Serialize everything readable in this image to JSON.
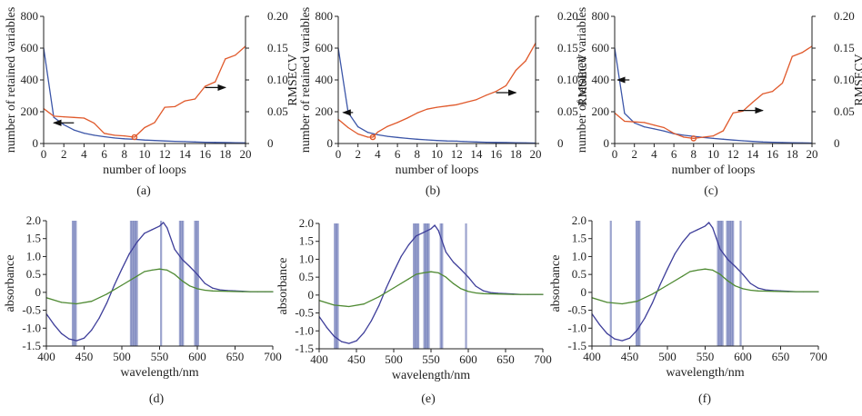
{
  "colors": {
    "retained_line": "#3c56a8",
    "rmsecv_line": "#e0592b",
    "spectrum_line": "#3e3e9a",
    "mean_line": "#4f8a33",
    "selected_band": "#4a5aa6",
    "axis": "#222222"
  },
  "chart_data": [
    {
      "id": "a",
      "caption": "(a)",
      "type": "line",
      "xlabel": "number of loops",
      "ylabel": "number of retained variables",
      "y2label": "RMSECV",
      "xlim": [
        0,
        20
      ],
      "ylim": [
        0,
        800
      ],
      "y2lim": [
        0,
        0.2
      ],
      "xticks": [
        0,
        2,
        4,
        6,
        8,
        10,
        12,
        14,
        16,
        18,
        20
      ],
      "yticks": [
        0,
        200,
        400,
        600,
        800
      ],
      "y2ticks": [
        0,
        0.05,
        0.1,
        0.15,
        0.2
      ],
      "y2ticklabels": [
        "0",
        "0.05",
        "0.10",
        "0.15",
        "0.20"
      ],
      "series": [
        {
          "name": "number of retained variables",
          "axis": "left",
          "x": [
            0,
            1,
            2,
            3,
            4,
            5,
            6,
            7,
            8,
            9,
            10,
            11,
            12,
            13,
            14,
            15,
            16,
            17,
            18,
            19,
            20
          ],
          "values": [
            601,
            165,
            118,
            85,
            65,
            52,
            43,
            35,
            30,
            26,
            22,
            19,
            16,
            14,
            12,
            10,
            8,
            7,
            6,
            5,
            4
          ]
        },
        {
          "name": "RMSECV",
          "axis": "right",
          "x": [
            0,
            1,
            2,
            3,
            4,
            5,
            6,
            7,
            8,
            9,
            10,
            11,
            12,
            13,
            14,
            15,
            16,
            17,
            18,
            19,
            20
          ],
          "values": [
            0.055,
            0.043,
            0.042,
            0.041,
            0.04,
            0.032,
            0.016,
            0.013,
            0.012,
            0.01,
            0.025,
            0.033,
            0.057,
            0.058,
            0.067,
            0.07,
            0.09,
            0.097,
            0.133,
            0.139,
            0.153
          ]
        }
      ],
      "markers": [
        {
          "series": "RMSECV",
          "x": 9,
          "value": 0.01
        }
      ],
      "arrows": [
        {
          "direction": "left",
          "x": [
            1.0,
            3.0
          ],
          "y": 130,
          "axis": "left"
        },
        {
          "direction": "right",
          "x": [
            16.0,
            18.0
          ],
          "y": 0.088,
          "axis": "right"
        }
      ]
    },
    {
      "id": "b",
      "caption": "(b)",
      "type": "line",
      "xlabel": "number of loops",
      "ylabel": "number of retained variables",
      "y2label": "RMSECV",
      "xlim": [
        0,
        20
      ],
      "ylim": [
        0,
        800
      ],
      "y2lim": [
        0,
        0.2
      ],
      "xticks": [
        0,
        2,
        4,
        6,
        8,
        10,
        12,
        14,
        16,
        18,
        20
      ],
      "yticks": [
        0,
        200,
        400,
        600,
        800
      ],
      "y2ticks": [
        0,
        0.05,
        0.1,
        0.15,
        0.2
      ],
      "y2ticklabels": [
        "0",
        "0.05",
        "0.10",
        "0.15",
        "0.20"
      ],
      "series": [
        {
          "name": "number of retained variables",
          "axis": "left",
          "x": [
            0,
            1,
            2,
            3,
            4,
            5,
            6,
            7,
            8,
            9,
            10,
            11,
            12,
            13,
            14,
            15,
            16,
            17,
            18,
            19,
            20
          ],
          "values": [
            601,
            195,
            105,
            70,
            55,
            45,
            38,
            32,
            27,
            23,
            19,
            16,
            15,
            12,
            10,
            8,
            7,
            6,
            5,
            4,
            3
          ]
        },
        {
          "name": "RMSECV",
          "axis": "right",
          "x": [
            0,
            1,
            2,
            3,
            3.5,
            4,
            5,
            6,
            7,
            8,
            9,
            10,
            11,
            12,
            13,
            14,
            15,
            16,
            17,
            18,
            19,
            20
          ],
          "values": [
            0.038,
            0.025,
            0.015,
            0.01,
            0.01,
            0.018,
            0.027,
            0.033,
            0.04,
            0.048,
            0.054,
            0.057,
            0.059,
            0.061,
            0.065,
            0.069,
            0.076,
            0.082,
            0.091,
            0.115,
            0.13,
            0.158
          ]
        }
      ],
      "markers": [
        {
          "series": "RMSECV",
          "x": 3.5,
          "value": 0.01
        }
      ],
      "arrows": [
        {
          "direction": "left",
          "x": [
            0.5,
            1.5
          ],
          "y": 195,
          "axis": "left"
        },
        {
          "direction": "right",
          "x": [
            16.0,
            18.0
          ],
          "y": 0.08,
          "axis": "right"
        }
      ]
    },
    {
      "id": "c",
      "caption": "(c)",
      "type": "line",
      "xlabel": "number of loops",
      "ylabel": "number of retained variables",
      "y2label": "RMSECV",
      "xlim": [
        0,
        20
      ],
      "ylim": [
        0,
        800
      ],
      "y2lim": [
        0,
        0.2
      ],
      "xticks": [
        0,
        2,
        4,
        6,
        8,
        10,
        12,
        14,
        16,
        18,
        20
      ],
      "yticks": [
        0,
        200,
        400,
        600,
        800
      ],
      "y2ticks": [
        0,
        0.05,
        0.1,
        0.15,
        0.2
      ],
      "y2ticklabels": [
        "0",
        "0.05",
        "0.10",
        "0.15",
        "0.20"
      ],
      "series": [
        {
          "name": "number of retained variables",
          "axis": "left",
          "x": [
            0,
            1,
            2,
            3,
            4,
            5,
            6,
            7,
            8,
            9,
            10,
            11,
            12,
            13,
            14,
            15,
            16,
            17,
            18,
            19,
            20
          ],
          "values": [
            601,
            190,
            130,
            105,
            92,
            78,
            62,
            52,
            45,
            38,
            32,
            27,
            22,
            17,
            13,
            10,
            8,
            6,
            5,
            4,
            3
          ]
        },
        {
          "name": "RMSECV",
          "axis": "right",
          "x": [
            0,
            1,
            2,
            3,
            4,
            5,
            6,
            7,
            8,
            9,
            10,
            11,
            12,
            13,
            14,
            15,
            16,
            17,
            18,
            19,
            20
          ],
          "values": [
            0.048,
            0.035,
            0.034,
            0.033,
            0.029,
            0.025,
            0.016,
            0.01,
            0.008,
            0.01,
            0.012,
            0.02,
            0.048,
            0.051,
            0.065,
            0.078,
            0.082,
            0.095,
            0.137,
            0.143,
            0.153
          ]
        }
      ],
      "markers": [
        {
          "series": "RMSECV",
          "x": 8,
          "value": 0.008
        }
      ],
      "arrows": [
        {
          "direction": "left",
          "x": [
            0.3,
            1.5
          ],
          "y": 400,
          "axis": "left"
        },
        {
          "direction": "right",
          "x": [
            12.5,
            15.0
          ],
          "y": 0.052,
          "axis": "right"
        }
      ]
    },
    {
      "id": "d",
      "caption": "(d)",
      "type": "line",
      "xlabel": "wavelength/nm",
      "ylabel": "absorbance",
      "xlim": [
        400,
        700
      ],
      "ylim": [
        -1.5,
        2.0
      ],
      "xticks": [
        400,
        450,
        500,
        550,
        600,
        650,
        700
      ],
      "yticks": [
        -1.5,
        -1.0,
        -0.5,
        0,
        0.5,
        1.0,
        1.5,
        2.0
      ],
      "yticklabels": [
        "-1.5",
        "-1.0",
        "-0.5",
        "0",
        "0.5",
        "1.0",
        "1.5",
        "2.0"
      ],
      "series": [
        {
          "name": "spectrum",
          "x": [
            400,
            410,
            420,
            430,
            440,
            450,
            460,
            470,
            480,
            490,
            500,
            510,
            520,
            530,
            540,
            550,
            555,
            560,
            570,
            580,
            590,
            600,
            610,
            620,
            630,
            640,
            650,
            660,
            670,
            680,
            690,
            700
          ],
          "values": [
            -0.6,
            -0.9,
            -1.15,
            -1.3,
            -1.35,
            -1.28,
            -1.05,
            -0.72,
            -0.3,
            0.2,
            0.65,
            1.08,
            1.4,
            1.65,
            1.75,
            1.85,
            1.95,
            1.8,
            1.2,
            0.92,
            0.72,
            0.5,
            0.25,
            0.12,
            0.07,
            0.05,
            0.04,
            0.03,
            0.02,
            0.02,
            0.02,
            0.02
          ]
        },
        {
          "name": "mean",
          "x": [
            400,
            420,
            440,
            460,
            480,
            500,
            520,
            530,
            540,
            550,
            560,
            570,
            580,
            590,
            600,
            610,
            620,
            640,
            660,
            680,
            700
          ],
          "values": [
            -0.15,
            -0.28,
            -0.32,
            -0.25,
            -0.05,
            0.2,
            0.45,
            0.58,
            0.62,
            0.65,
            0.62,
            0.5,
            0.32,
            0.18,
            0.1,
            0.06,
            0.04,
            0.03,
            0.02,
            0.02,
            0.02
          ]
        }
      ],
      "selected_wavelengths": [
        435,
        437,
        439,
        512,
        514,
        516,
        518,
        520,
        552,
        577,
        579,
        581,
        597,
        599,
        601
      ]
    },
    {
      "id": "e",
      "caption": "(e)",
      "type": "line",
      "xlabel": "wavelength/nm",
      "ylabel": "absorbance",
      "xlim": [
        400,
        700
      ],
      "ylim": [
        -1.5,
        2.0
      ],
      "xticks": [
        400,
        450,
        500,
        550,
        600,
        650,
        700
      ],
      "yticks": [
        -1.5,
        -1.0,
        -0.5,
        0,
        0.5,
        1.0,
        1.5,
        2.0
      ],
      "yticklabels": [
        "-1.5",
        "-1.0",
        "-0.5",
        "0",
        "0.5",
        "1.0",
        "1.5",
        "2.0"
      ],
      "series": [
        {
          "name": "spectrum",
          "x": [
            400,
            410,
            420,
            430,
            440,
            450,
            460,
            470,
            480,
            490,
            500,
            510,
            520,
            530,
            540,
            550,
            555,
            560,
            570,
            580,
            590,
            600,
            610,
            620,
            630,
            640,
            650,
            660,
            670,
            680,
            690,
            700
          ],
          "values": [
            -0.6,
            -0.9,
            -1.15,
            -1.3,
            -1.35,
            -1.28,
            -1.05,
            -0.72,
            -0.3,
            0.2,
            0.65,
            1.08,
            1.4,
            1.65,
            1.75,
            1.85,
            1.95,
            1.8,
            1.2,
            0.92,
            0.72,
            0.5,
            0.25,
            0.12,
            0.07,
            0.05,
            0.04,
            0.03,
            0.02,
            0.02,
            0.02,
            0.02
          ]
        },
        {
          "name": "mean",
          "x": [
            400,
            420,
            440,
            460,
            480,
            500,
            520,
            530,
            540,
            550,
            560,
            570,
            580,
            590,
            600,
            610,
            620,
            640,
            660,
            680,
            700
          ],
          "values": [
            -0.15,
            -0.28,
            -0.32,
            -0.25,
            -0.05,
            0.2,
            0.45,
            0.58,
            0.62,
            0.65,
            0.62,
            0.5,
            0.32,
            0.18,
            0.1,
            0.06,
            0.04,
            0.03,
            0.02,
            0.02,
            0.02
          ]
        }
      ],
      "selected_wavelengths": [
        421,
        423,
        425,
        527,
        529,
        531,
        533,
        541,
        543,
        545,
        547,
        563,
        565,
        597
      ]
    },
    {
      "id": "f",
      "caption": "(f)",
      "type": "line",
      "xlabel": "wavelength/nm",
      "ylabel": "absorbance",
      "xlim": [
        400,
        700
      ],
      "ylim": [
        -1.5,
        2.0
      ],
      "xticks": [
        400,
        450,
        500,
        550,
        600,
        650,
        700
      ],
      "yticks": [
        -1.5,
        -1.0,
        -0.5,
        0,
        0.5,
        1.0,
        1.5,
        2.0
      ],
      "yticklabels": [
        "-1.5",
        "-1.0",
        "-0.5",
        "0",
        "0.5",
        "1.0",
        "1.5",
        "2.0"
      ],
      "series": [
        {
          "name": "spectrum",
          "x": [
            400,
            410,
            420,
            430,
            440,
            450,
            460,
            470,
            480,
            490,
            500,
            510,
            520,
            530,
            540,
            550,
            555,
            560,
            570,
            580,
            590,
            600,
            610,
            620,
            630,
            640,
            650,
            660,
            670,
            680,
            690,
            700
          ],
          "values": [
            -0.6,
            -0.9,
            -1.15,
            -1.3,
            -1.35,
            -1.28,
            -1.05,
            -0.72,
            -0.3,
            0.2,
            0.65,
            1.08,
            1.4,
            1.65,
            1.75,
            1.85,
            1.95,
            1.8,
            1.2,
            0.92,
            0.72,
            0.5,
            0.25,
            0.12,
            0.07,
            0.05,
            0.04,
            0.03,
            0.02,
            0.02,
            0.02,
            0.02
          ]
        },
        {
          "name": "mean",
          "x": [
            400,
            420,
            440,
            460,
            480,
            500,
            520,
            530,
            540,
            550,
            560,
            570,
            580,
            590,
            600,
            610,
            620,
            640,
            660,
            680,
            700
          ],
          "values": [
            -0.15,
            -0.28,
            -0.32,
            -0.25,
            -0.05,
            0.2,
            0.45,
            0.58,
            0.62,
            0.65,
            0.62,
            0.5,
            0.32,
            0.18,
            0.1,
            0.06,
            0.04,
            0.03,
            0.02,
            0.02,
            0.02
          ]
        }
      ],
      "selected_wavelengths": [
        425,
        459,
        461,
        463,
        567,
        569,
        571,
        573,
        579,
        581,
        583,
        585,
        587,
        597
      ]
    }
  ]
}
